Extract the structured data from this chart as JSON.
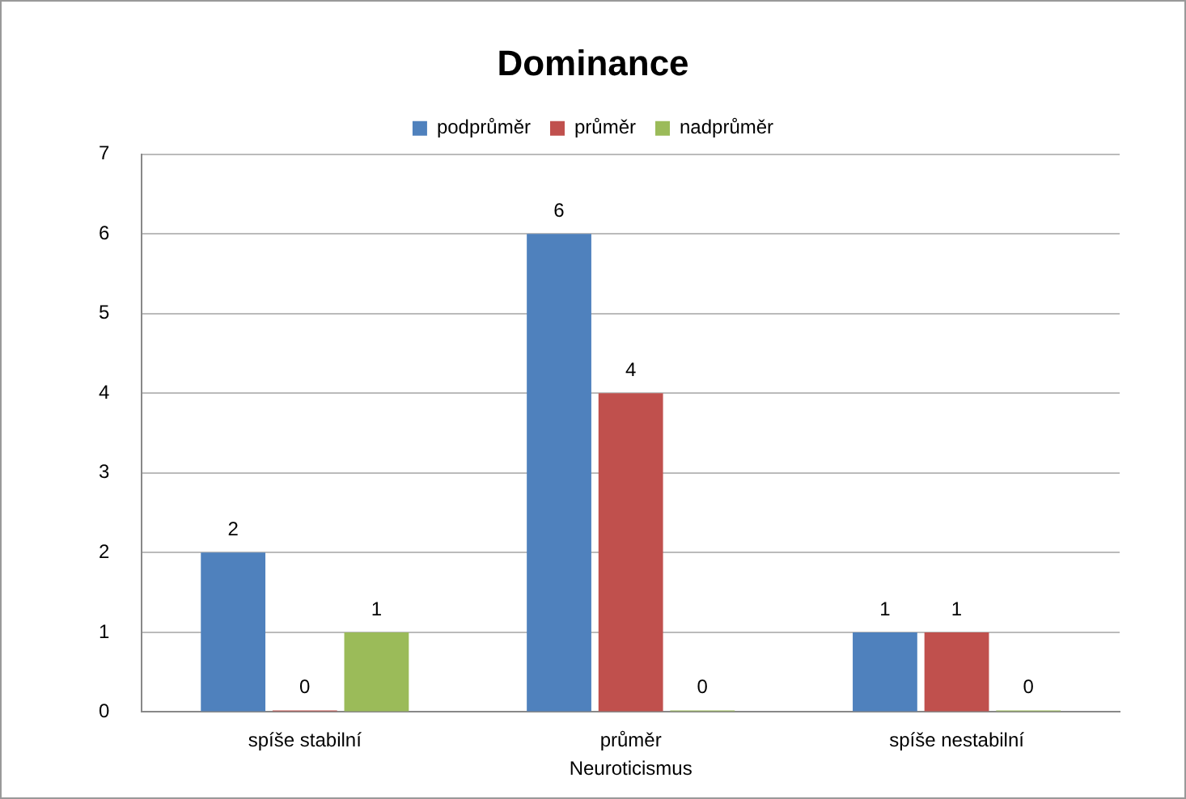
{
  "chart_data": {
    "type": "bar",
    "title": "Dominance",
    "xlabel": "Neuroticismus",
    "categories": [
      "spíše stabilní",
      "průměr",
      "spíše nestabilní"
    ],
    "series": [
      {
        "name": "podprůměr",
        "color": "#4f81bd",
        "values": [
          2,
          6,
          1
        ]
      },
      {
        "name": "průměr",
        "color": "#c0504d",
        "values": [
          0,
          4,
          1
        ]
      },
      {
        "name": "nadprůměr",
        "color": "#9bbb59",
        "values": [
          1,
          0,
          0
        ]
      }
    ],
    "ylim": [
      0,
      7
    ],
    "yticks": [
      0,
      1,
      2,
      3,
      4,
      5,
      6,
      7
    ],
    "grid": "y",
    "legend": "top",
    "data_labels": true
  }
}
